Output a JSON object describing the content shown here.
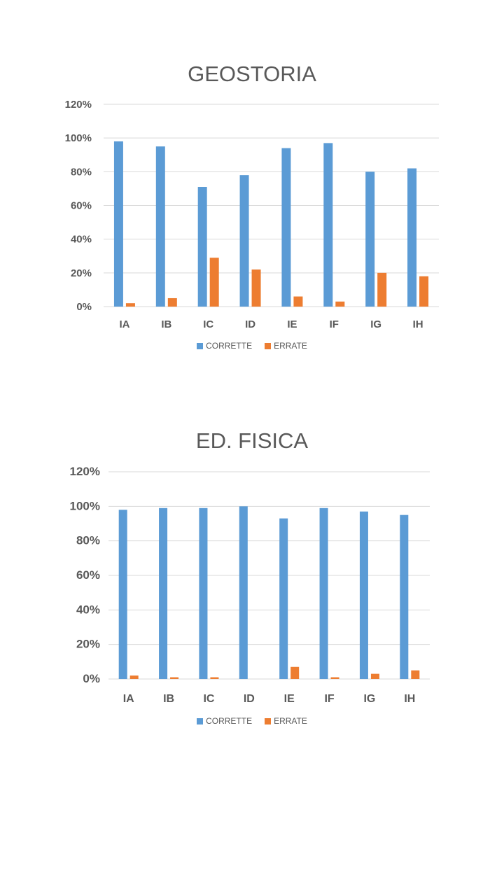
{
  "colors": {
    "corrette": "#5b9bd5",
    "errate": "#ed7d31",
    "grid": "#d9d9d9",
    "text": "#595959"
  },
  "chart_data": [
    {
      "type": "bar",
      "title": "GEOSTORIA",
      "categories": [
        "IA",
        "IB",
        "IC",
        "ID",
        "IE",
        "IF",
        "IG",
        "IH"
      ],
      "y_ticks": [
        "0%",
        "20%",
        "40%",
        "60%",
        "80%",
        "100%",
        "120%"
      ],
      "ylim": [
        0,
        120
      ],
      "grid": true,
      "legend_position": "bottom",
      "series": [
        {
          "name": "CORRETTE",
          "values": [
            98,
            95,
            71,
            78,
            94,
            97,
            80,
            82
          ]
        },
        {
          "name": "ERRATE",
          "values": [
            2,
            5,
            29,
            22,
            6,
            3,
            20,
            18
          ]
        }
      ]
    },
    {
      "type": "bar",
      "title": "ED. FISICA",
      "categories": [
        "IA",
        "IB",
        "IC",
        "ID",
        "IE",
        "IF",
        "IG",
        "IH"
      ],
      "y_ticks": [
        "0%",
        "20%",
        "40%",
        "60%",
        "80%",
        "100%",
        "120%"
      ],
      "ylim": [
        0,
        120
      ],
      "grid": true,
      "legend_position": "bottom",
      "series": [
        {
          "name": "CORRETTE",
          "values": [
            98,
            99,
            99,
            100,
            93,
            99,
            97,
            95
          ]
        },
        {
          "name": "ERRATE",
          "values": [
            2,
            1,
            1,
            0,
            7,
            1,
            3,
            5
          ]
        }
      ]
    }
  ]
}
